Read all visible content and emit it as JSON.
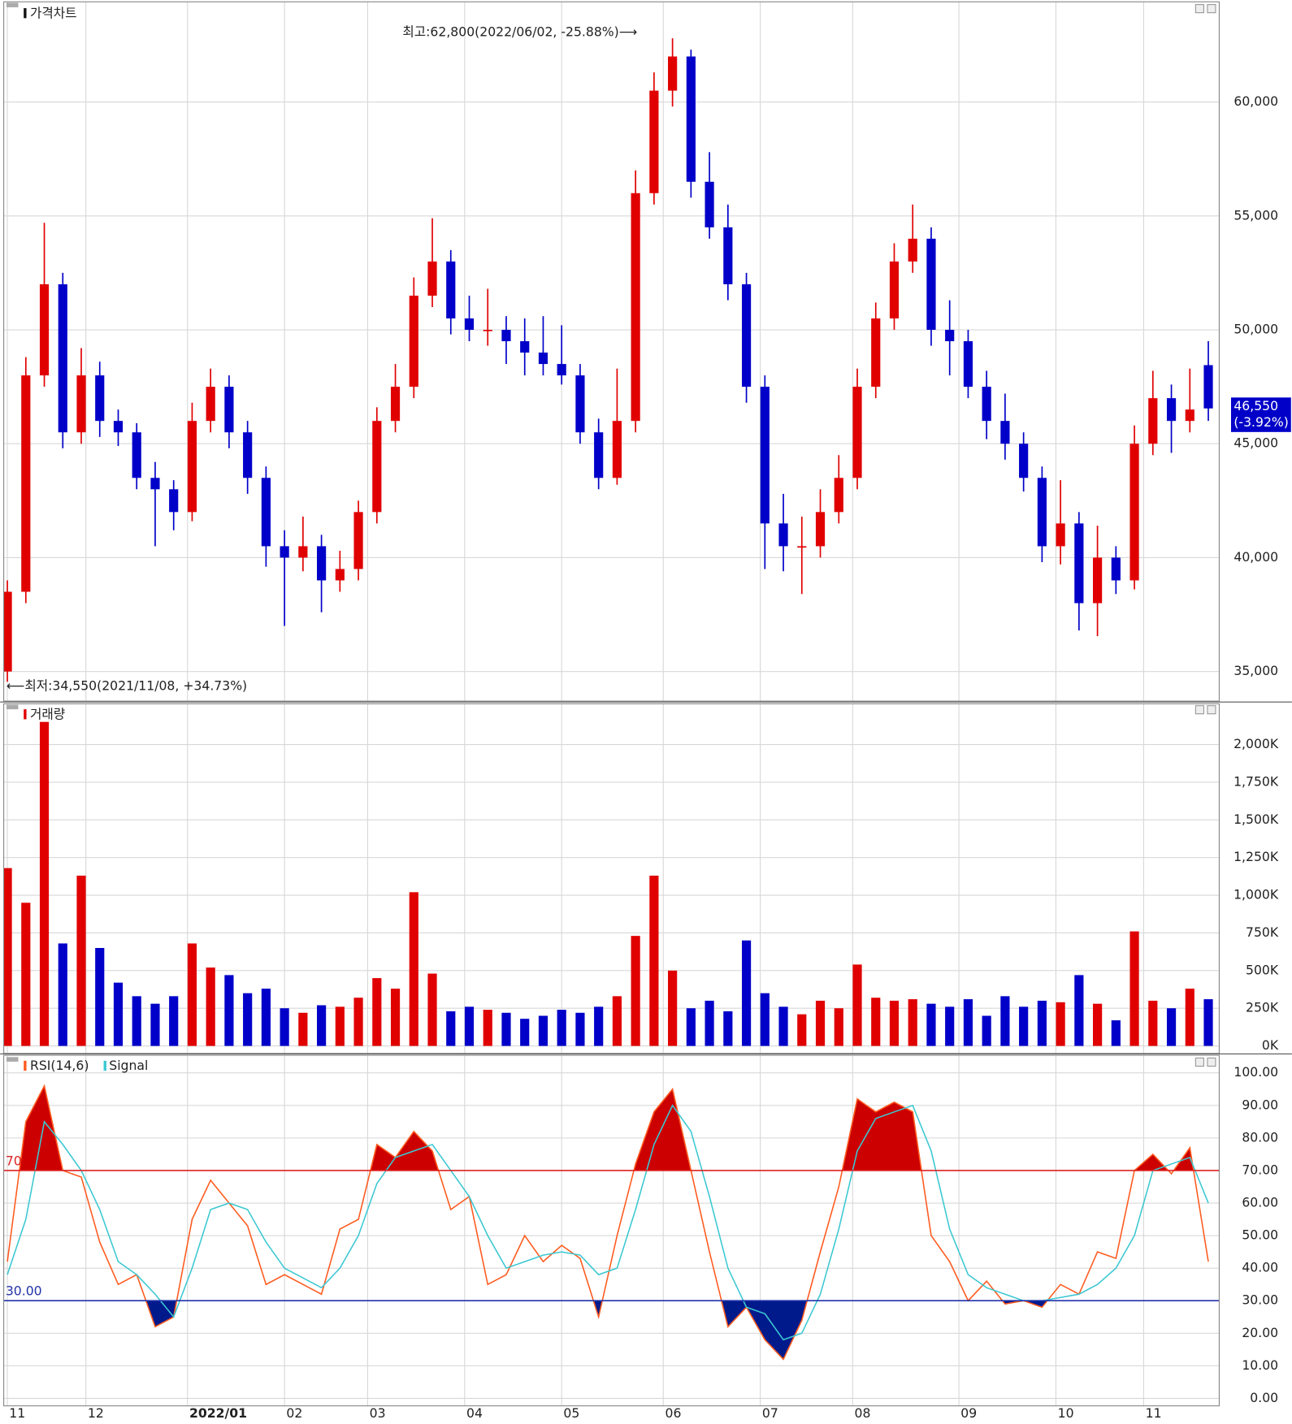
{
  "chart_data": [
    {
      "type": "candlestick",
      "title": "가격차트",
      "up_color": "#e00000",
      "down_color": "#0000c8",
      "xlim": [
        0,
        260
      ],
      "x": [
        0,
        4,
        8,
        12,
        16,
        20,
        24,
        28,
        32,
        36,
        40,
        44,
        48,
        52,
        56,
        60,
        64,
        68,
        72,
        76,
        80,
        84,
        88,
        92,
        96,
        100,
        104,
        108,
        112,
        116,
        120,
        124,
        128,
        132,
        136,
        140,
        144,
        148,
        152,
        156,
        160,
        164,
        168,
        172,
        176,
        180,
        184,
        188,
        192,
        196,
        200,
        204,
        208,
        212,
        216,
        220,
        224,
        228,
        232,
        236,
        240,
        244,
        248,
        252,
        256,
        260
      ],
      "open": [
        35000,
        38500,
        48000,
        52000,
        45500,
        48000,
        46000,
        45500,
        43500,
        43000,
        42000,
        46000,
        47500,
        45500,
        43500,
        40500,
        40000,
        40500,
        39000,
        39500,
        42000,
        46000,
        47500,
        51500,
        53000,
        50500,
        50000,
        50000,
        49500,
        49000,
        48500,
        48000,
        45500,
        43500,
        46000,
        56000,
        60500,
        62000,
        56500,
        54500,
        52000,
        47500,
        41500,
        40500,
        40500,
        42000,
        43500,
        47500,
        50500,
        53000,
        54000,
        50000,
        49500,
        47500,
        46000,
        45000,
        43500,
        40500,
        41500,
        38000,
        40000,
        39000,
        45000,
        47000,
        46000,
        48450
      ],
      "high": [
        39000,
        48800,
        54700,
        52500,
        49200,
        48600,
        46500,
        45900,
        44200,
        43400,
        46800,
        48300,
        48000,
        46000,
        44000,
        41200,
        41800,
        41000,
        40300,
        42500,
        46600,
        48500,
        52300,
        54900,
        53500,
        51500,
        51800,
        50600,
        50500,
        50600,
        50200,
        48500,
        46100,
        48300,
        57000,
        61300,
        62800,
        62300,
        57800,
        55500,
        52500,
        48000,
        42800,
        41800,
        43000,
        44500,
        48300,
        51200,
        53800,
        55500,
        54500,
        51300,
        50000,
        48200,
        47200,
        45500,
        44000,
        43400,
        42000,
        41400,
        40500,
        45800,
        48200,
        47600,
        48300,
        49500
      ],
      "low": [
        34550,
        38000,
        47500,
        44800,
        45000,
        45300,
        44900,
        43000,
        40500,
        41200,
        41600,
        45500,
        44800,
        42800,
        39600,
        37000,
        39400,
        37600,
        38500,
        39000,
        41500,
        45500,
        47000,
        51000,
        49800,
        49500,
        49300,
        48500,
        48000,
        48000,
        47600,
        45000,
        43000,
        43200,
        45500,
        55500,
        59800,
        55800,
        54000,
        51300,
        46800,
        39500,
        39400,
        38400,
        40000,
        41500,
        43000,
        47000,
        50000,
        52500,
        49300,
        48000,
        47000,
        45200,
        44300,
        42900,
        39800,
        39700,
        36800,
        36550,
        38400,
        38600,
        44500,
        44600,
        45500,
        46000
      ],
      "close": [
        38500,
        48000,
        52000,
        45500,
        48000,
        46000,
        45500,
        43500,
        43000,
        42000,
        46000,
        47500,
        45500,
        43500,
        40500,
        40000,
        40500,
        39000,
        39500,
        42000,
        46000,
        47500,
        51500,
        53000,
        50500,
        50000,
        50000,
        49500,
        49000,
        48500,
        48000,
        45500,
        43500,
        46000,
        56000,
        60500,
        62000,
        56500,
        54500,
        52000,
        47500,
        41500,
        40500,
        40500,
        42000,
        43500,
        47500,
        50500,
        53000,
        54000,
        50000,
        49500,
        47500,
        46000,
        45000,
        43500,
        40500,
        41500,
        38000,
        40000,
        39000,
        45000,
        47000,
        46000,
        46500,
        46550
      ],
      "ylim": [
        33700,
        64400
      ],
      "yticks": [
        {
          "value": 35000,
          "label": "35,000"
        },
        {
          "value": 40000,
          "label": "40,000"
        },
        {
          "value": 45000,
          "label": "45,000"
        },
        {
          "value": 50000,
          "label": "50,000"
        },
        {
          "value": 55000,
          "label": "55,000"
        },
        {
          "value": 60000,
          "label": "60,000"
        }
      ],
      "annotations": [
        "최고:62,800(2022/06/02, -25.88%)⟶",
        "⟵최저:34,550(2021/11/08, +34.73%)"
      ],
      "current_price": {
        "value": 46550,
        "label": "46,550"
      },
      "current_change": "(-3.92%)",
      "grid": true
    },
    {
      "type": "bar",
      "title": "거래량",
      "color": "#e00000",
      "xlim": [
        0,
        260
      ],
      "x": [
        0,
        4,
        8,
        12,
        16,
        20,
        24,
        28,
        32,
        36,
        40,
        44,
        48,
        52,
        56,
        60,
        64,
        68,
        72,
        76,
        80,
        84,
        88,
        92,
        96,
        100,
        104,
        108,
        112,
        116,
        120,
        124,
        128,
        132,
        136,
        140,
        144,
        148,
        152,
        156,
        160,
        164,
        168,
        172,
        176,
        180,
        184,
        188,
        192,
        196,
        200,
        204,
        208,
        212,
        216,
        220,
        224,
        228,
        232,
        236,
        240,
        244,
        248,
        252,
        256,
        260
      ],
      "values": [
        1180000,
        950000,
        2150000,
        680000,
        1130000,
        650000,
        420000,
        330000,
        280000,
        330000,
        680000,
        520000,
        470000,
        350000,
        380000,
        250000,
        220000,
        270000,
        260000,
        320000,
        450000,
        380000,
        1020000,
        480000,
        230000,
        260000,
        240000,
        220000,
        180000,
        200000,
        240000,
        220000,
        260000,
        330000,
        730000,
        1130000,
        500000,
        250000,
        300000,
        230000,
        700000,
        350000,
        260000,
        210000,
        300000,
        250000,
        540000,
        320000,
        300000,
        310000,
        280000,
        260000,
        310000,
        200000,
        330000,
        260000,
        300000,
        290000,
        470000,
        280000,
        170000,
        760000,
        300000,
        250000,
        380000,
        310000
      ],
      "ylim": [
        -50000,
        2270000
      ],
      "yticks": [
        {
          "value": 0,
          "label": "0K"
        },
        {
          "value": 250000,
          "label": "250K"
        },
        {
          "value": 500000,
          "label": "500K"
        },
        {
          "value": 750000,
          "label": "750K"
        },
        {
          "value": 1000000,
          "label": "1,000K"
        },
        {
          "value": 1250000,
          "label": "1,250K"
        },
        {
          "value": 1500000,
          "label": "1,500K"
        },
        {
          "value": 1750000,
          "label": "1,750K"
        },
        {
          "value": 2000000,
          "label": "2,000K"
        }
      ],
      "grid": true
    },
    {
      "type": "line",
      "xlim": [
        0,
        260
      ],
      "x": [
        0,
        4,
        8,
        12,
        16,
        20,
        24,
        28,
        32,
        36,
        40,
        44,
        48,
        52,
        56,
        60,
        64,
        68,
        72,
        76,
        80,
        84,
        88,
        92,
        96,
        100,
        104,
        108,
        112,
        116,
        120,
        124,
        128,
        132,
        136,
        140,
        144,
        148,
        152,
        156,
        160,
        164,
        168,
        172,
        176,
        180,
        184,
        188,
        192,
        196,
        200,
        204,
        208,
        212,
        216,
        220,
        224,
        228,
        232,
        236,
        240,
        244,
        248,
        252,
        256,
        260
      ],
      "series": [
        {
          "name": "RSI(14,6)",
          "color": "#ff5a1e",
          "values": [
            42,
            85,
            96,
            70,
            68,
            48,
            35,
            38,
            22,
            25,
            55,
            67,
            60,
            53,
            35,
            38,
            35,
            32,
            52,
            55,
            78,
            74,
            82,
            76,
            58,
            62,
            35,
            38,
            50,
            42,
            47,
            43,
            25,
            50,
            72,
            88,
            95,
            70,
            45,
            22,
            28,
            18,
            12,
            24,
            45,
            65,
            92,
            88,
            91,
            88,
            50,
            42,
            30,
            36,
            29,
            30,
            28,
            35,
            32,
            45,
            43,
            70,
            75,
            69,
            77,
            42
          ]
        },
        {
          "name": "Signal",
          "color": "#3cc8d2",
          "values": [
            38,
            55,
            85,
            78,
            70,
            58,
            42,
            38,
            32,
            25,
            40,
            58,
            60,
            58,
            48,
            40,
            37,
            34,
            40,
            50,
            66,
            74,
            76,
            78,
            70,
            62,
            50,
            40,
            42,
            44,
            45,
            44,
            38,
            40,
            58,
            78,
            90,
            82,
            62,
            40,
            28,
            26,
            18,
            20,
            32,
            52,
            76,
            86,
            88,
            90,
            76,
            52,
            38,
            34,
            32,
            30,
            30,
            31,
            32,
            35,
            40,
            50,
            70,
            72,
            74,
            60
          ]
        }
      ],
      "levels": [
        70,
        {
          "value": 30,
          "label": "30.00"
        }
      ],
      "level_colors": [
        "#dd2222",
        "#2233aa"
      ],
      "fill_colors": [
        "#cc0000",
        "#001a8c"
      ],
      "ylim": [
        -2.3,
        105.4
      ],
      "yticks": [
        {
          "value": 0,
          "label": "0.00"
        },
        {
          "value": 10,
          "label": "10.00"
        },
        {
          "value": 20,
          "label": "20.00"
        },
        {
          "value": 30,
          "label": "30.00"
        },
        {
          "value": 40,
          "label": "40.00"
        },
        {
          "value": 50,
          "label": "50.00"
        },
        {
          "value": 60,
          "label": "60.00"
        },
        {
          "value": 70,
          "label": "70.00"
        },
        {
          "value": 80,
          "label": "80.00"
        },
        {
          "value": 90,
          "label": "90.00"
        },
        {
          "value": 100,
          "label": "100.00"
        }
      ],
      "xticks": [
        {
          "value": 0,
          "label": "11"
        },
        {
          "value": 17,
          "label": "12"
        },
        {
          "value": 39,
          "label": "2022/01"
        },
        {
          "value": 60,
          "label": "02"
        },
        {
          "value": 78,
          "label": "03"
        },
        {
          "value": 99,
          "label": "04"
        },
        {
          "value": 120,
          "label": "05"
        },
        {
          "value": 142,
          "label": "06"
        },
        {
          "value": 163,
          "label": "07"
        },
        {
          "value": 183,
          "label": "08"
        },
        {
          "value": 206,
          "label": "09"
        },
        {
          "value": 227,
          "label": "10"
        },
        {
          "value": 246,
          "label": "11"
        }
      ],
      "grid": true
    }
  ]
}
